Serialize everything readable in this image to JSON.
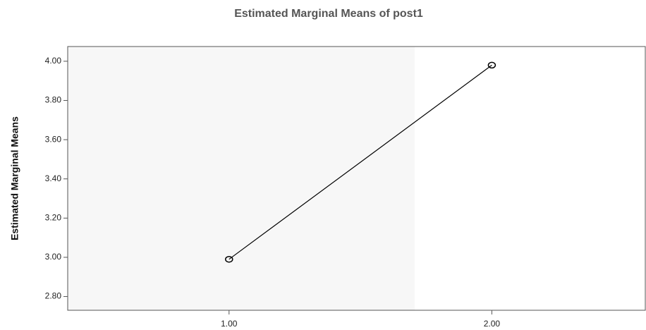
{
  "chart_data": {
    "type": "line",
    "title": "Estimated Marginal Means of post1",
    "y_label": "Estimated Marginal Means",
    "x": [
      1,
      2
    ],
    "series": [
      {
        "name": "post1",
        "color": "#000000",
        "values": [
          2.99,
          3.98
        ]
      }
    ],
    "xlim": [
      0.386,
      2.584
    ],
    "xticks": [
      {
        "value": 1,
        "label": "1.00"
      },
      {
        "value": 2,
        "label": "2.00"
      }
    ],
    "ylim": [
      2.73,
      4.075
    ],
    "yticks": [
      {
        "value": 2.8,
        "label": "2.80"
      },
      {
        "value": 3.0,
        "label": "3.00"
      },
      {
        "value": 3.2,
        "label": "3.20"
      },
      {
        "value": 3.4,
        "label": "3.40"
      },
      {
        "value": 3.6,
        "label": "3.60"
      },
      {
        "value": 3.8,
        "label": "3.80"
      },
      {
        "value": 4.0,
        "label": "4.00"
      }
    ],
    "grid": false
  }
}
